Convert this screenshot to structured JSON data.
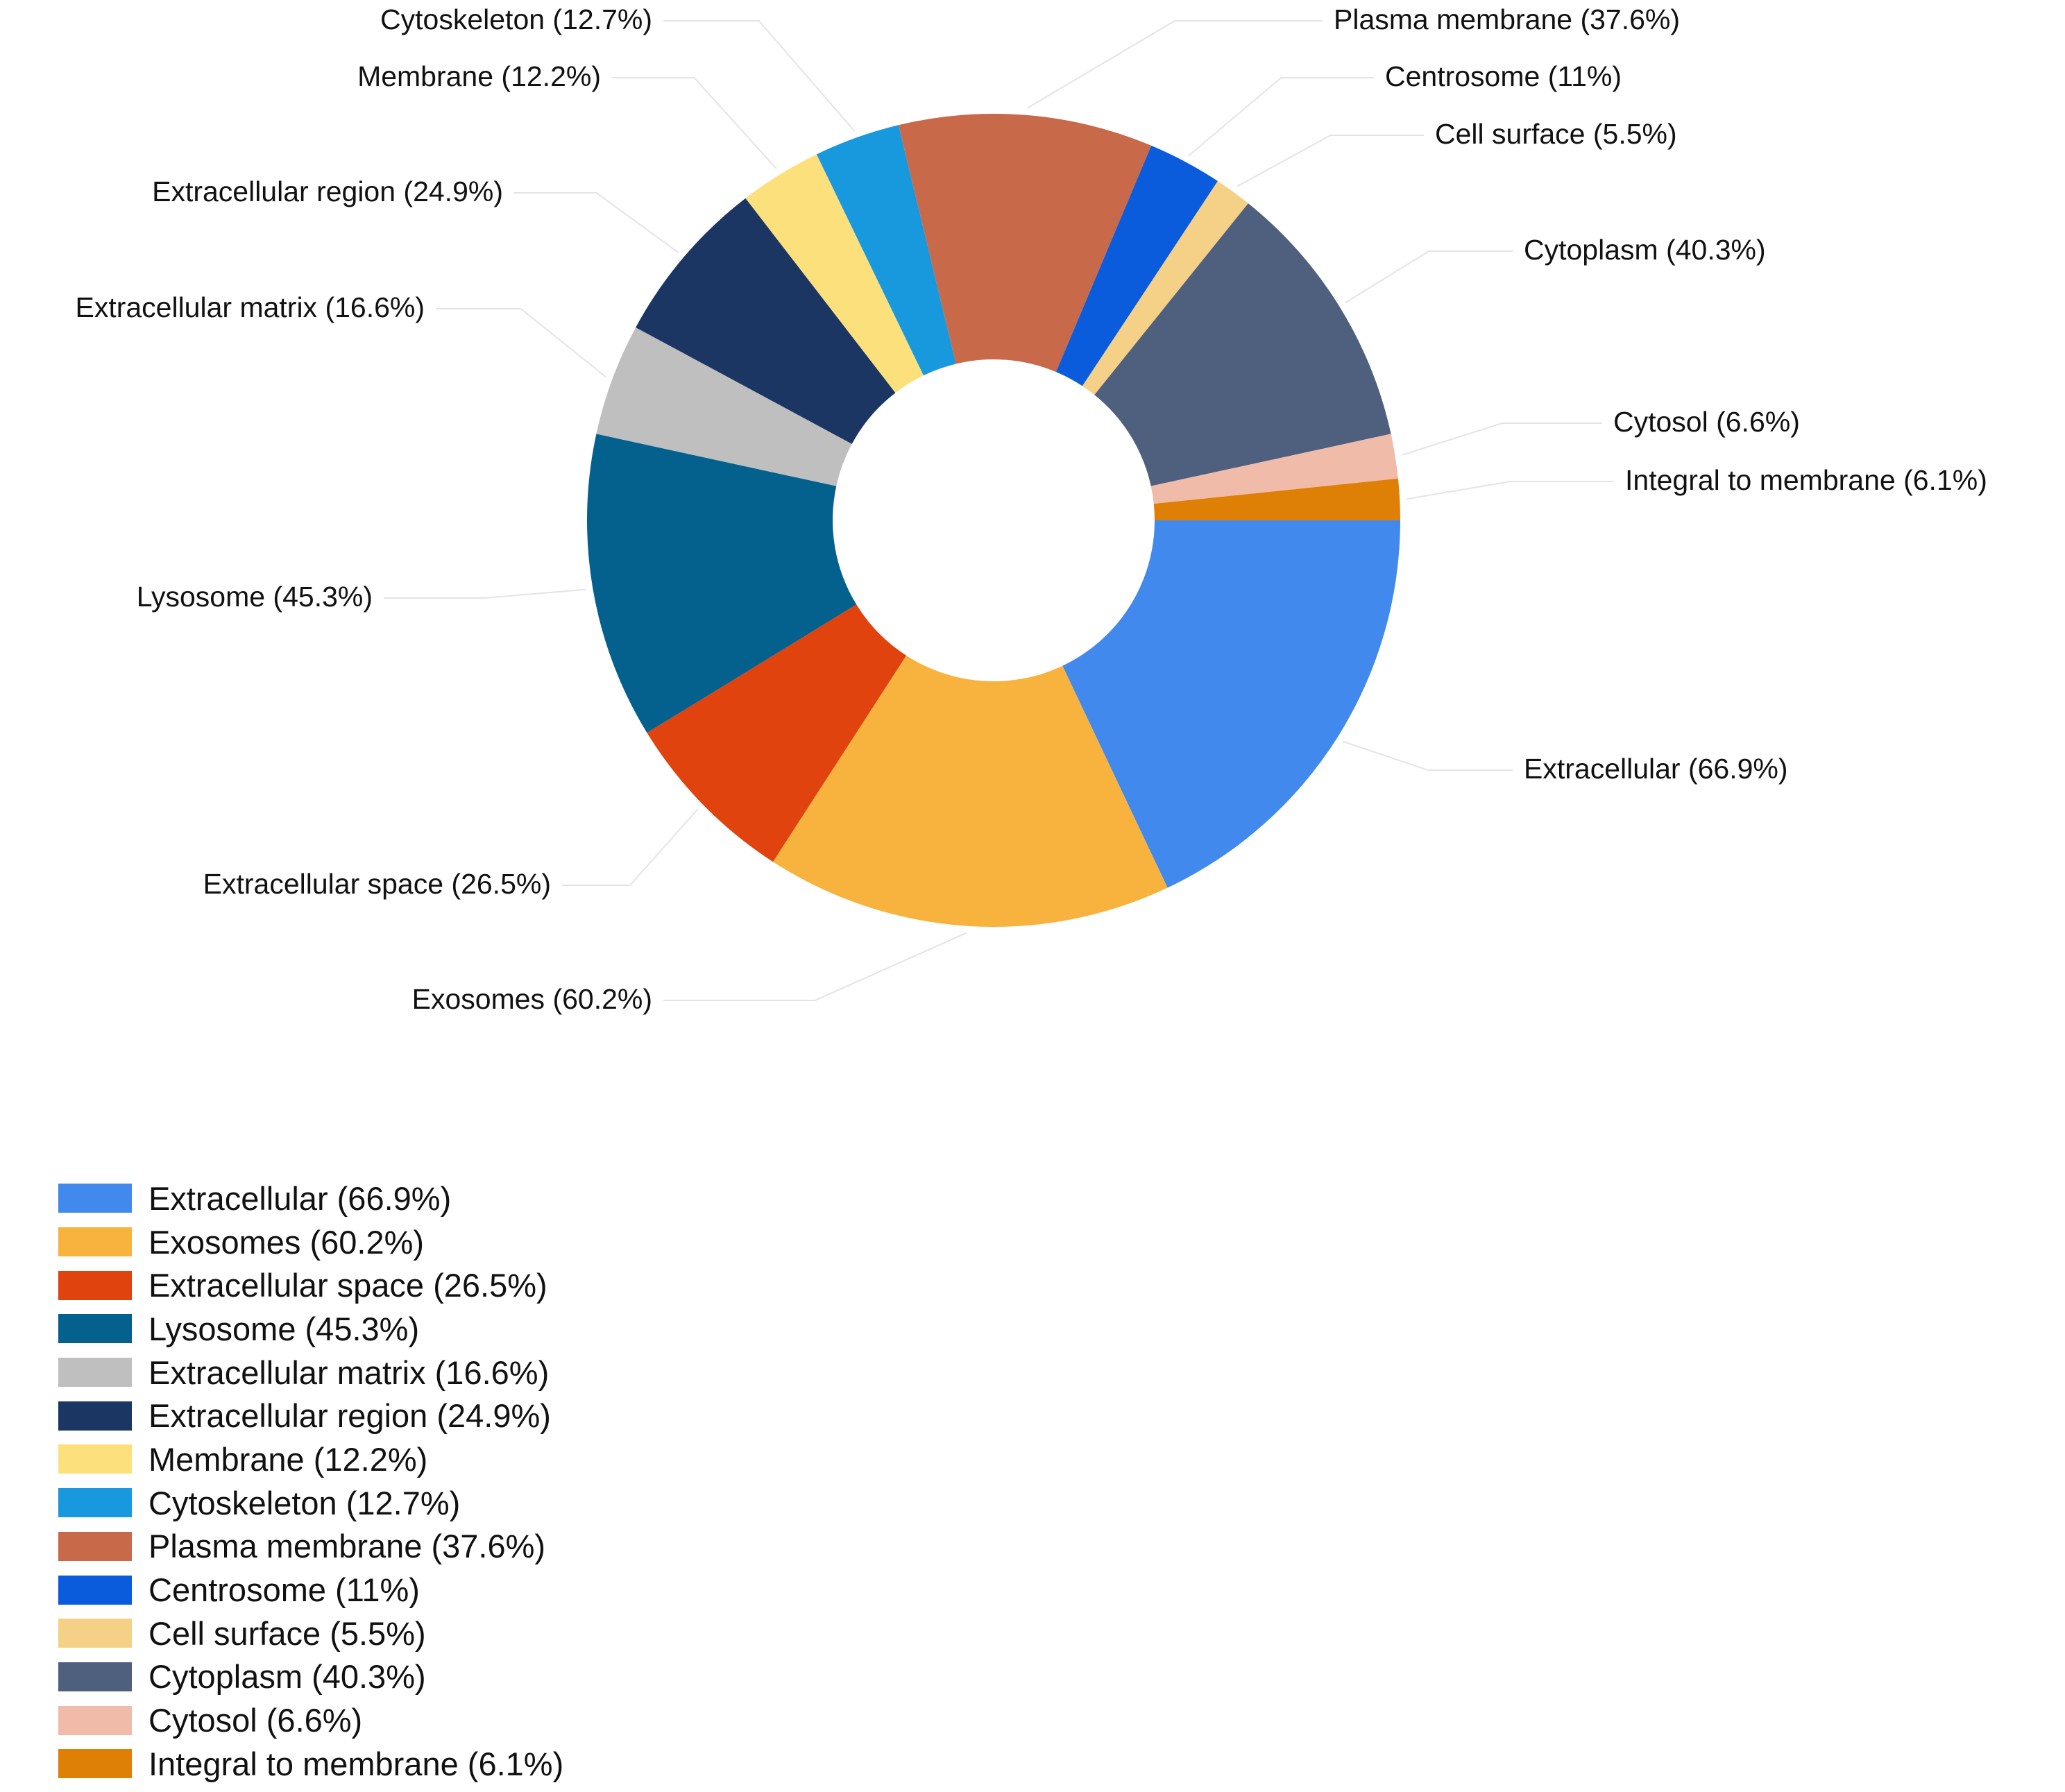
{
  "chart_data": {
    "type": "pie",
    "variant": "donut",
    "slices": [
      {
        "label": "Extracellular (66.9%)",
        "value": 66.9,
        "color": "#4189ec"
      },
      {
        "label": "Exosomes (60.2%)",
        "value": 60.2,
        "color": "#f8b33f"
      },
      {
        "label": "Extracellular space (26.5%)",
        "value": 26.5,
        "color": "#e0430e"
      },
      {
        "label": "Lysosome (45.3%)",
        "value": 45.3,
        "color": "#04618e"
      },
      {
        "label": "Extracellular matrix (16.6%)",
        "value": 16.6,
        "color": "#bfbfbf"
      },
      {
        "label": "Extracellular region (24.9%)",
        "value": 24.9,
        "color": "#1b3662"
      },
      {
        "label": "Membrane (12.2%)",
        "value": 12.2,
        "color": "#fbe07c"
      },
      {
        "label": "Cytoskeleton (12.7%)",
        "value": 12.7,
        "color": "#1899de"
      },
      {
        "label": "Plasma membrane (37.6%)",
        "value": 37.6,
        "color": "#c8694a"
      },
      {
        "label": "Centrosome (11%)",
        "value": 11,
        "color": "#0a5cdc"
      },
      {
        "label": "Cell surface (5.5%)",
        "value": 5.5,
        "color": "#f4d186"
      },
      {
        "label": "Cytoplasm (40.3%)",
        "value": 40.3,
        "color": "#4f607e"
      },
      {
        "label": "Cytosol (6.6%)",
        "value": 6.6,
        "color": "#f1bbaa"
      },
      {
        "label": "Integral to membrane (6.1%)",
        "value": 6.1,
        "color": "#de8006"
      }
    ],
    "legend_position": "bottom-left"
  }
}
